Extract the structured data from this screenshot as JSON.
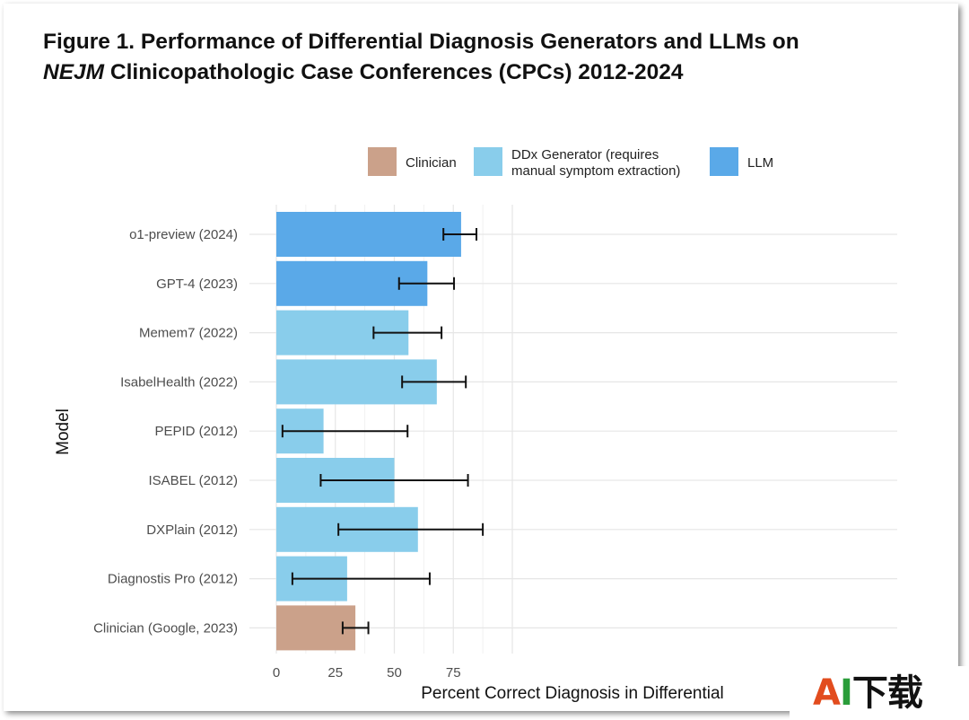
{
  "title": {
    "line1": "Figure 1. Performance of Differential Diagnosis Generators and LLMs on",
    "line2_italic": "NEJM",
    "line2_rest": " Clinicopathologic Case Conferences (CPCs) 2012-2024"
  },
  "chart_data": {
    "type": "bar",
    "orientation": "horizontal",
    "xlabel": "Percent Correct Diagnosis in Differential",
    "ylabel": "Model",
    "xlim": [
      0,
      100
    ],
    "xticks": [
      0,
      25,
      50,
      75
    ],
    "grid": true,
    "legend_position": "top",
    "legend": [
      {
        "name": "Clinician",
        "color": "#cba18a"
      },
      {
        "name": "DDx Generator (requires manual symptom extraction)",
        "lines": [
          "DDx Generator (requires",
          "manual symptom extraction)"
        ],
        "color": "#89cdeb"
      },
      {
        "name": "LLM",
        "color": "#5aa9e8"
      }
    ],
    "categories": [
      "o1-preview (2024)",
      "GPT-4 (2023)",
      "Memem7 (2022)",
      "IsabelHealth (2022)",
      "PEPID (2012)",
      "ISABEL (2012)",
      "DXPlain (2012)",
      "Diagnostis Pro (2012)",
      "Clinician (Google, 2023)"
    ],
    "groups": [
      "LLM",
      "LLM",
      "DDx Generator",
      "DDx Generator",
      "DDx Generator",
      "DDx Generator",
      "DDx Generator",
      "DDx Generator",
      "Clinician"
    ],
    "values": [
      78.3,
      64.0,
      56.0,
      68.0,
      20.0,
      50.0,
      60.0,
      30.0,
      33.5
    ],
    "error_low": [
      70.8,
      52.0,
      41.2,
      53.3,
      2.6,
      18.8,
      26.3,
      6.8,
      28.1
    ],
    "error_high": [
      84.8,
      75.3,
      70.0,
      80.3,
      55.6,
      81.2,
      87.5,
      65.0,
      39.0
    ]
  },
  "watermark": {
    "text_a": "A",
    "text_i": "I",
    "text_rest": "下载"
  }
}
